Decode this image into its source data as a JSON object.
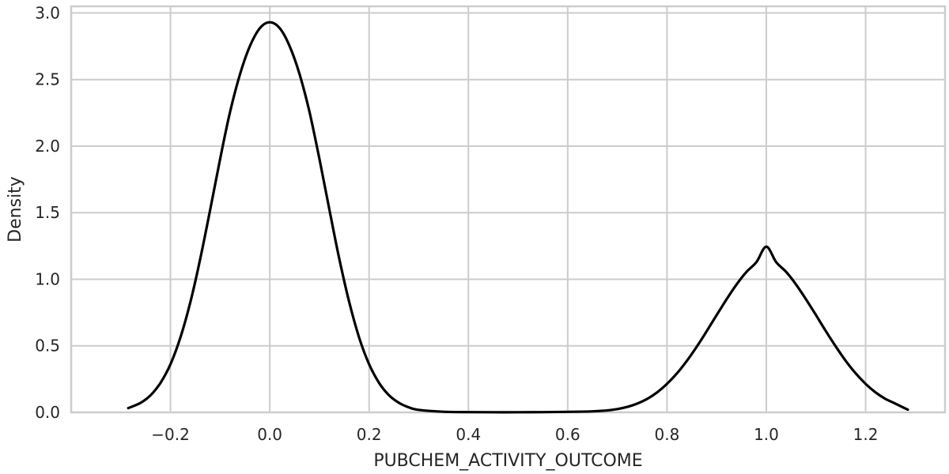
{
  "chart_data": {
    "type": "line",
    "title": "",
    "xlabel": "PUBCHEM_ACTIVITY_OUTCOME",
    "ylabel": "Density",
    "xlim": [
      -0.4,
      1.36
    ],
    "ylim": [
      0,
      3.05
    ],
    "xticks": [
      -0.2,
      0.0,
      0.2,
      0.4,
      0.6,
      0.8,
      1.0,
      1.2
    ],
    "xtick_labels": [
      "−0.2",
      "0.0",
      "0.2",
      "0.4",
      "0.6",
      "0.8",
      "1.0",
      "1.2"
    ],
    "yticks": [
      0.0,
      0.5,
      1.0,
      1.5,
      2.0,
      2.5,
      3.0
    ],
    "ytick_labels": [
      "0.0",
      "0.5",
      "1.0",
      "1.5",
      "2.0",
      "2.5",
      "3.0"
    ],
    "grid": true,
    "legend": "none",
    "series": [
      {
        "color": "#000000",
        "x": [
          -0.285,
          -0.26,
          -0.24,
          -0.22,
          -0.2,
          -0.18,
          -0.16,
          -0.14,
          -0.12,
          -0.1,
          -0.08,
          -0.06,
          -0.04,
          -0.02,
          0.0,
          0.02,
          0.04,
          0.06,
          0.08,
          0.1,
          0.12,
          0.14,
          0.16,
          0.18,
          0.2,
          0.22,
          0.24,
          0.26,
          0.28,
          0.3,
          0.35,
          0.4,
          0.45,
          0.5,
          0.55,
          0.6,
          0.65,
          0.68,
          0.7,
          0.72,
          0.74,
          0.76,
          0.78,
          0.8,
          0.82,
          0.84,
          0.86,
          0.88,
          0.9,
          0.92,
          0.94,
          0.96,
          0.98,
          1.0,
          1.02,
          1.04,
          1.06,
          1.08,
          1.1,
          1.12,
          1.14,
          1.16,
          1.18,
          1.2,
          1.22,
          1.24,
          1.26,
          1.285
        ],
        "y": [
          0.032,
          0.072,
          0.129,
          0.222,
          0.362,
          0.562,
          0.828,
          1.154,
          1.523,
          1.904,
          2.256,
          2.54,
          2.751,
          2.886,
          2.93,
          2.886,
          2.751,
          2.54,
          2.256,
          1.904,
          1.523,
          1.154,
          0.828,
          0.562,
          0.362,
          0.222,
          0.129,
          0.072,
          0.038,
          0.019,
          0.005,
          0.002,
          0.001,
          0.001,
          0.002,
          0.004,
          0.008,
          0.015,
          0.025,
          0.041,
          0.066,
          0.101,
          0.15,
          0.214,
          0.293,
          0.387,
          0.494,
          0.61,
          0.731,
          0.849,
          0.96,
          1.055,
          1.128,
          1.245,
          1.128,
          1.055,
          0.96,
          0.849,
          0.731,
          0.61,
          0.494,
          0.387,
          0.293,
          0.214,
          0.15,
          0.101,
          0.066,
          0.02
        ]
      }
    ]
  }
}
